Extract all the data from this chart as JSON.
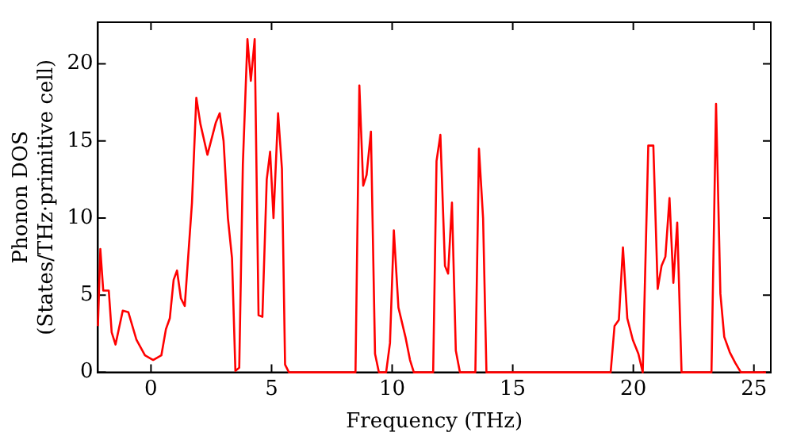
{
  "chart_data": {
    "type": "line",
    "xlabel": "Frequency (THz)",
    "ylabel": "Phonon DOS\n(States/THz·primitive cell)",
    "xlim": [
      -2.2,
      25.7
    ],
    "ylim": [
      0,
      22.7
    ],
    "xticks": [
      0,
      5,
      10,
      15,
      20,
      25
    ],
    "yticks": [
      0,
      5,
      10,
      15,
      20
    ],
    "grid": false,
    "legend": false,
    "marker": "none",
    "line_style": "solid",
    "series": [
      {
        "color": "#ff0000",
        "x": [
          -2.2,
          -2.1,
          -1.98,
          -1.75,
          -1.63,
          -1.47,
          -1.17,
          -0.94,
          -0.6,
          -0.25,
          0.09,
          0.43,
          0.62,
          0.78,
          0.94,
          1.08,
          1.24,
          1.4,
          1.7,
          1.88,
          2.05,
          2.34,
          2.69,
          2.85,
          3.01,
          3.19,
          3.36,
          3.5,
          3.66,
          3.81,
          4.0,
          4.14,
          4.3,
          4.46,
          4.62,
          4.8,
          4.94,
          5.08,
          5.27,
          5.43,
          5.56,
          5.72,
          8.48,
          8.64,
          8.8,
          8.94,
          9.12,
          9.29,
          9.45,
          9.75,
          9.91,
          10.07,
          10.26,
          10.55,
          10.74,
          10.9,
          11.7,
          11.84,
          12.0,
          12.19,
          12.32,
          12.48,
          12.64,
          12.81,
          13.45,
          13.6,
          13.77,
          13.91,
          19.06,
          19.22,
          19.4,
          19.57,
          19.75,
          19.98,
          20.21,
          20.39,
          20.62,
          20.83,
          21.01,
          21.17,
          21.33,
          21.5,
          21.66,
          21.82,
          22.0,
          23.24,
          23.43,
          23.61,
          23.77,
          24.0,
          24.23,
          24.46,
          25.5
        ],
        "values": [
          3.0,
          8.0,
          5.3,
          5.3,
          2.6,
          1.8,
          4.0,
          3.9,
          2.1,
          1.1,
          0.8,
          1.1,
          2.8,
          3.5,
          6.0,
          6.6,
          4.8,
          4.3,
          11.0,
          17.8,
          16.1,
          14.1,
          16.2,
          16.8,
          15.0,
          10.0,
          7.4,
          0.1,
          0.3,
          13.5,
          21.6,
          18.9,
          21.6,
          3.7,
          3.6,
          12.5,
          14.3,
          10.0,
          16.8,
          13.2,
          0.5,
          0,
          0,
          18.6,
          12.1,
          12.8,
          15.6,
          1.2,
          0,
          0,
          1.9,
          9.2,
          4.2,
          2.3,
          0.8,
          0,
          0,
          13.7,
          15.4,
          6.9,
          6.4,
          11.0,
          1.4,
          0,
          0,
          14.5,
          10.0,
          0,
          0,
          3.0,
          3.4,
          8.1,
          3.5,
          2.1,
          1.2,
          0,
          14.7,
          14.7,
          5.4,
          6.9,
          7.5,
          11.3,
          5.8,
          9.7,
          0,
          0,
          17.4,
          5.1,
          2.3,
          1.3,
          0.6,
          0,
          0
        ]
      }
    ]
  }
}
